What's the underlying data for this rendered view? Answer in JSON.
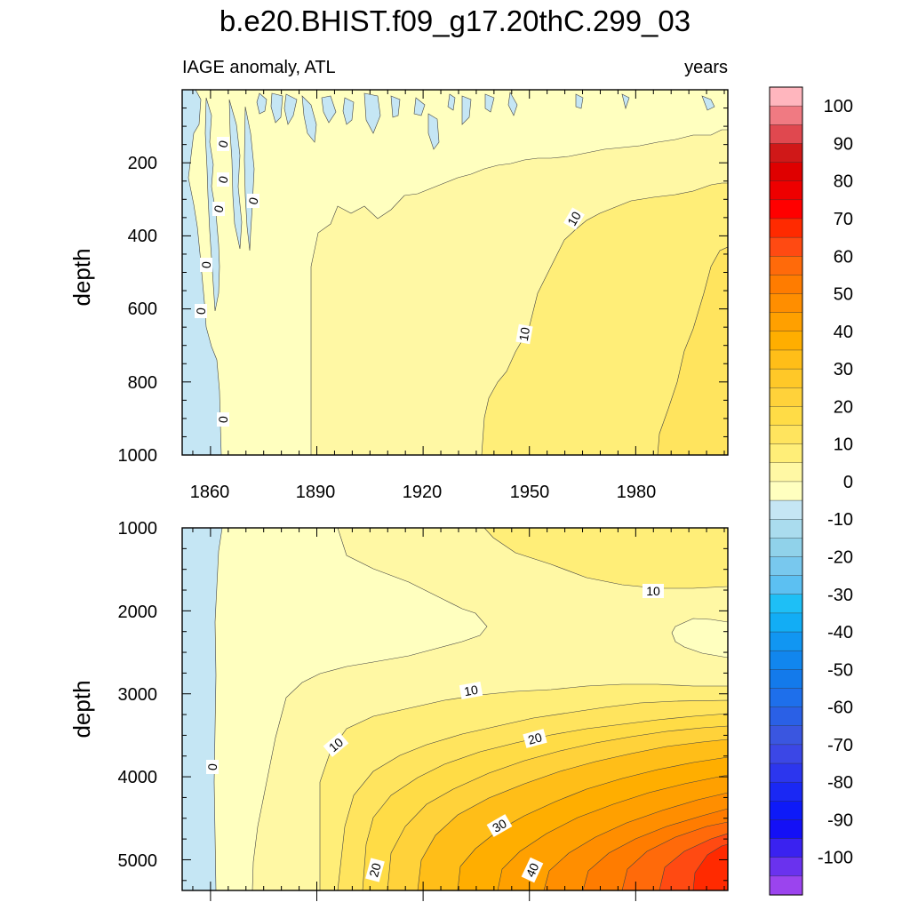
{
  "title": "b.e20.BHIST.f09_g17.20thC.299_03",
  "top_panel": {
    "left_label": "IAGE anomaly, ATL",
    "right_label": "years",
    "ylabel": "depth",
    "yticks": [
      "200",
      "400",
      "600",
      "800",
      "1000"
    ],
    "xticks": [
      "1860",
      "1890",
      "1920",
      "1950",
      "1980"
    ]
  },
  "bottom_panel": {
    "ylabel": "depth",
    "yticks": [
      "1000",
      "2000",
      "3000",
      "4000",
      "5000"
    ]
  },
  "colorbar": {
    "labels": [
      "100",
      "90",
      "80",
      "70",
      "60",
      "50",
      "40",
      "30",
      "20",
      "10",
      "0",
      "-10",
      "-20",
      "-30",
      "-40",
      "-50",
      "-60",
      "-70",
      "-80",
      "-90",
      "-100"
    ],
    "colors": [
      "#FFB6BE",
      "#F07A82",
      "#E0484F",
      "#D01818",
      "#DF0000",
      "#EE0000",
      "#FF0000",
      "#FF2A00",
      "#FF4A12",
      "#FF6A0A",
      "#FF7C00",
      "#FF8E00",
      "#FFA000",
      "#FFAE00",
      "#FFBE18",
      "#FFC828",
      "#FFD23A",
      "#FFDC46",
      "#FFE45E",
      "#FFEE78",
      "#FFF8A4",
      "#FFFFBF",
      "#C5E6F4",
      "#AADCEE",
      "#90D2EA",
      "#78C8EE",
      "#5CC0F2",
      "#1EBFF6",
      "#12ADF5",
      "#1196F2",
      "#1186EE",
      "#137AEB",
      "#1E6FEB",
      "#2A60E6",
      "#3A56E0",
      "#3B47E6",
      "#2C36EE",
      "#1A28F4",
      "#0E1AF8",
      "#1410F6",
      "#3A22F0",
      "#6A32EE",
      "#9B44EE"
    ]
  },
  "chart_data": [
    {
      "type": "heatmap",
      "title": "b.e20.BHIST.f09_g17.20thC.299_03",
      "xlabel": "",
      "ylabel": "depth",
      "xlim": [
        1852,
        2006
      ],
      "ylim": [
        1000,
        0
      ],
      "color_levels": [
        -100,
        -95,
        -90,
        -85,
        -80,
        -75,
        -70,
        -65,
        -60,
        -55,
        -50,
        -45,
        -40,
        -35,
        -30,
        -25,
        -20,
        -15,
        -10,
        -5,
        0,
        5,
        10,
        15,
        20,
        25,
        30,
        35,
        40,
        45,
        50,
        55,
        60,
        65,
        70,
        75,
        80,
        85,
        90,
        95,
        100
      ],
      "contour_labels": [
        "0",
        "10"
      ],
      "regions_approx": [
        {
          "x": [
            1852,
            1864
          ],
          "depth": [
            0,
            1000
          ],
          "value": "-5 to 0"
        },
        {
          "x": [
            1864,
            1895
          ],
          "depth": [
            0,
            1000
          ],
          "value": "0 to 5"
        },
        {
          "x": [
            1895,
            1940
          ],
          "depth": [
            300,
            1000
          ],
          "value": "5 to 10"
        },
        {
          "x": [
            1940,
            2006
          ],
          "depth": [
            250,
            1000
          ],
          "value": "10 to 15"
        },
        {
          "x": [
            1988,
            2006
          ],
          "depth": [
            450,
            1000
          ],
          "value": "15 to 20"
        }
      ]
    },
    {
      "type": "heatmap",
      "xlabel": "",
      "ylabel": "depth",
      "xlim": [
        1852,
        2006
      ],
      "ylim": [
        5370,
        1000
      ],
      "color_levels": [
        -100,
        -95,
        -90,
        -85,
        -80,
        -75,
        -70,
        -65,
        -60,
        -55,
        -50,
        -45,
        -40,
        -35,
        -30,
        -25,
        -20,
        -15,
        -10,
        -5,
        0,
        5,
        10,
        15,
        20,
        25,
        30,
        35,
        40,
        45,
        50,
        55,
        60,
        65,
        70,
        75,
        80,
        85,
        90,
        95,
        100
      ],
      "contour_labels": [
        "0",
        "10",
        "20",
        "30",
        "40"
      ],
      "regions_approx": [
        {
          "x": [
            1852,
            1862
          ],
          "depth": [
            1000,
            5370
          ],
          "value": "-5 to 0"
        },
        {
          "x": [
            1862,
            1945
          ],
          "depth": [
            1000,
            2600
          ],
          "value": "0 to 5"
        },
        {
          "x": [
            1940,
            2006
          ],
          "depth": [
            1000,
            3000
          ],
          "value": "5 to 15"
        },
        {
          "x": [
            1890,
            2006
          ],
          "depth": [
            3000,
            4200
          ],
          "value": "10 to 25"
        },
        {
          "x": [
            1930,
            2006
          ],
          "depth": [
            4000,
            5370
          ],
          "value": "25 to 55"
        }
      ]
    }
  ]
}
